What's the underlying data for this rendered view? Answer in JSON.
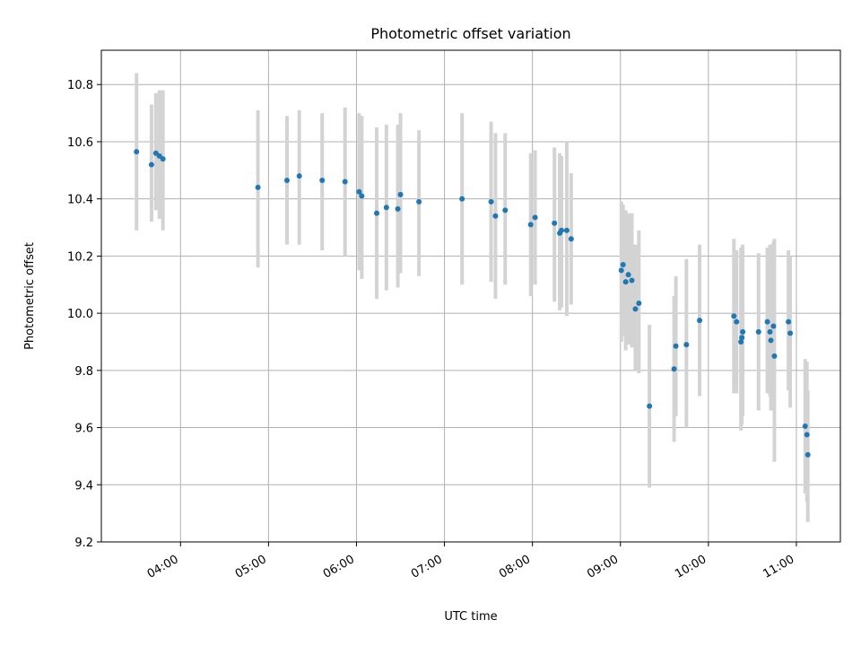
{
  "chart_data": {
    "type": "scatter",
    "title": "Photometric offset variation",
    "xlabel": "UTC time",
    "ylabel": "Photometric offset",
    "x_unit": "hours UTC",
    "xlim": [
      3.1,
      11.5
    ],
    "ylim": [
      9.2,
      10.92
    ],
    "grid": true,
    "x_ticks": [
      {
        "value": 4,
        "label": "04:00"
      },
      {
        "value": 5,
        "label": "05:00"
      },
      {
        "value": 6,
        "label": "06:00"
      },
      {
        "value": 7,
        "label": "07:00"
      },
      {
        "value": 8,
        "label": "08:00"
      },
      {
        "value": 9,
        "label": "09:00"
      },
      {
        "value": 10,
        "label": "10:00"
      },
      {
        "value": 11,
        "label": "11:00"
      }
    ],
    "y_ticks": [
      {
        "value": 9.2,
        "label": "9.2"
      },
      {
        "value": 9.4,
        "label": "9.4"
      },
      {
        "value": 9.6,
        "label": "9.6"
      },
      {
        "value": 9.8,
        "label": "9.8"
      },
      {
        "value": 10.0,
        "label": "10.0"
      },
      {
        "value": 10.2,
        "label": "10.2"
      },
      {
        "value": 10.4,
        "label": "10.4"
      },
      {
        "value": 10.6,
        "label": "10.6"
      },
      {
        "value": 10.8,
        "label": "10.8"
      }
    ],
    "point_color": "#1f77b4",
    "errorbar_color": "#d3d3d3",
    "points": [
      {
        "x": 3.5,
        "y": 10.565,
        "lo": 10.29,
        "hi": 10.84
      },
      {
        "x": 3.67,
        "y": 10.52,
        "lo": 10.32,
        "hi": 10.73
      },
      {
        "x": 3.72,
        "y": 10.56,
        "lo": 10.36,
        "hi": 10.77
      },
      {
        "x": 3.76,
        "y": 10.55,
        "lo": 10.33,
        "hi": 10.78
      },
      {
        "x": 3.8,
        "y": 10.54,
        "lo": 10.29,
        "hi": 10.78
      },
      {
        "x": 4.88,
        "y": 10.44,
        "lo": 10.16,
        "hi": 10.71
      },
      {
        "x": 5.21,
        "y": 10.465,
        "lo": 10.24,
        "hi": 10.69
      },
      {
        "x": 5.35,
        "y": 10.48,
        "lo": 10.24,
        "hi": 10.71
      },
      {
        "x": 5.61,
        "y": 10.465,
        "lo": 10.22,
        "hi": 10.7
      },
      {
        "x": 5.87,
        "y": 10.46,
        "lo": 10.2,
        "hi": 10.72
      },
      {
        "x": 6.03,
        "y": 10.425,
        "lo": 10.15,
        "hi": 10.7
      },
      {
        "x": 6.06,
        "y": 10.41,
        "lo": 10.12,
        "hi": 10.69
      },
      {
        "x": 6.23,
        "y": 10.35,
        "lo": 10.05,
        "hi": 10.65
      },
      {
        "x": 6.34,
        "y": 10.37,
        "lo": 10.08,
        "hi": 10.66
      },
      {
        "x": 6.47,
        "y": 10.365,
        "lo": 10.09,
        "hi": 10.66
      },
      {
        "x": 6.5,
        "y": 10.415,
        "lo": 10.14,
        "hi": 10.7
      },
      {
        "x": 6.71,
        "y": 10.39,
        "lo": 10.13,
        "hi": 10.64
      },
      {
        "x": 7.2,
        "y": 10.4,
        "lo": 10.1,
        "hi": 10.7
      },
      {
        "x": 7.53,
        "y": 10.39,
        "lo": 10.11,
        "hi": 10.67
      },
      {
        "x": 7.58,
        "y": 10.34,
        "lo": 10.05,
        "hi": 10.63
      },
      {
        "x": 7.69,
        "y": 10.36,
        "lo": 10.1,
        "hi": 10.63
      },
      {
        "x": 7.98,
        "y": 10.31,
        "lo": 10.06,
        "hi": 10.56
      },
      {
        "x": 8.03,
        "y": 10.335,
        "lo": 10.1,
        "hi": 10.57
      },
      {
        "x": 8.25,
        "y": 10.315,
        "lo": 10.04,
        "hi": 10.58
      },
      {
        "x": 8.31,
        "y": 10.28,
        "lo": 10.01,
        "hi": 10.56
      },
      {
        "x": 8.33,
        "y": 10.29,
        "lo": 10.02,
        "hi": 10.55
      },
      {
        "x": 8.39,
        "y": 10.29,
        "lo": 9.99,
        "hi": 10.6
      },
      {
        "x": 8.44,
        "y": 10.26,
        "lo": 10.03,
        "hi": 10.49
      },
      {
        "x": 9.01,
        "y": 10.15,
        "lo": 9.9,
        "hi": 10.39
      },
      {
        "x": 9.03,
        "y": 10.17,
        "lo": 9.92,
        "hi": 10.38
      },
      {
        "x": 9.06,
        "y": 10.11,
        "lo": 9.87,
        "hi": 10.36
      },
      {
        "x": 9.09,
        "y": 10.135,
        "lo": 9.89,
        "hi": 10.35
      },
      {
        "x": 9.13,
        "y": 10.115,
        "lo": 9.88,
        "hi": 10.35
      },
      {
        "x": 9.17,
        "y": 10.015,
        "lo": 9.8,
        "hi": 10.24
      },
      {
        "x": 9.21,
        "y": 10.035,
        "lo": 9.79,
        "hi": 10.29
      },
      {
        "x": 9.33,
        "y": 9.675,
        "lo": 9.39,
        "hi": 9.96
      },
      {
        "x": 9.61,
        "y": 9.805,
        "lo": 9.55,
        "hi": 10.06
      },
      {
        "x": 9.63,
        "y": 9.885,
        "lo": 9.64,
        "hi": 10.13
      },
      {
        "x": 9.75,
        "y": 9.89,
        "lo": 9.6,
        "hi": 10.19
      },
      {
        "x": 9.9,
        "y": 9.975,
        "lo": 9.71,
        "hi": 10.24
      },
      {
        "x": 10.29,
        "y": 9.99,
        "lo": 9.72,
        "hi": 10.26
      },
      {
        "x": 10.32,
        "y": 9.97,
        "lo": 9.72,
        "hi": 10.22
      },
      {
        "x": 10.37,
        "y": 9.9,
        "lo": 9.59,
        "hi": 10.23
      },
      {
        "x": 10.38,
        "y": 9.915,
        "lo": 9.61,
        "hi": 10.22
      },
      {
        "x": 10.39,
        "y": 9.935,
        "lo": 9.64,
        "hi": 10.24
      },
      {
        "x": 10.57,
        "y": 9.935,
        "lo": 9.66,
        "hi": 10.21
      },
      {
        "x": 10.67,
        "y": 9.97,
        "lo": 9.72,
        "hi": 10.23
      },
      {
        "x": 10.7,
        "y": 9.935,
        "lo": 9.71,
        "hi": 10.24
      },
      {
        "x": 10.71,
        "y": 9.905,
        "lo": 9.66,
        "hi": 10.23
      },
      {
        "x": 10.74,
        "y": 9.955,
        "lo": 9.66,
        "hi": 10.25
      },
      {
        "x": 10.75,
        "y": 9.85,
        "lo": 9.48,
        "hi": 10.26
      },
      {
        "x": 10.91,
        "y": 9.97,
        "lo": 9.73,
        "hi": 10.22
      },
      {
        "x": 10.93,
        "y": 9.93,
        "lo": 9.67,
        "hi": 10.2
      },
      {
        "x": 11.1,
        "y": 9.605,
        "lo": 9.37,
        "hi": 9.84
      },
      {
        "x": 11.12,
        "y": 9.575,
        "lo": 9.34,
        "hi": 9.83
      },
      {
        "x": 11.13,
        "y": 9.505,
        "lo": 9.27,
        "hi": 9.73
      }
    ]
  }
}
